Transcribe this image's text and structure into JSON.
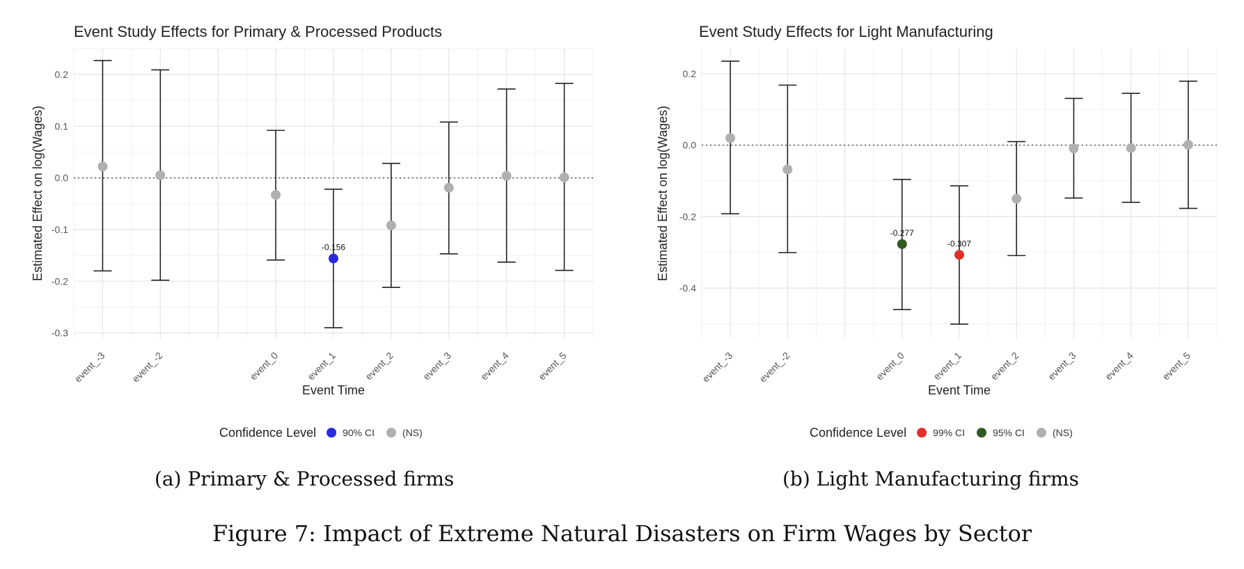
{
  "chart_data": [
    {
      "type": "scatter",
      "title": "Event Study Effects for Primary & Processed Products",
      "xlabel": "Event Time",
      "ylabel": "Estimated Effect on log(Wages)",
      "categories": [
        "event_-3",
        "event_-2",
        "event_0",
        "event_1",
        "event_2",
        "event_3",
        "event_4",
        "event_5"
      ],
      "ylim": [
        -0.31,
        0.25
      ],
      "yticks": [
        0.2,
        0.1,
        0.0,
        -0.1,
        -0.2,
        -0.3
      ],
      "ytick_labels": [
        "0.2",
        "0.1",
        "0.0",
        "-0.1",
        "-0.2",
        "-0.3"
      ],
      "reference_line": 0,
      "grid": true,
      "points": [
        {
          "x": "event_-3",
          "estimate": 0.022,
          "ci_low": -0.18,
          "ci_high": 0.227,
          "group": "(NS)"
        },
        {
          "x": "event_-2",
          "estimate": 0.005,
          "ci_low": -0.198,
          "ci_high": 0.209,
          "group": "(NS)"
        },
        {
          "x": "event_0",
          "estimate": -0.033,
          "ci_low": -0.159,
          "ci_high": 0.092,
          "group": "(NS)"
        },
        {
          "x": "event_1",
          "estimate": -0.156,
          "ci_low": -0.29,
          "ci_high": -0.022,
          "group": "90% CI",
          "label": "-0.156"
        },
        {
          "x": "event_2",
          "estimate": -0.092,
          "ci_low": -0.212,
          "ci_high": 0.028,
          "group": "(NS)"
        },
        {
          "x": "event_3",
          "estimate": -0.019,
          "ci_low": -0.147,
          "ci_high": 0.108,
          "group": "(NS)"
        },
        {
          "x": "event_4",
          "estimate": 0.004,
          "ci_low": -0.163,
          "ci_high": 0.172,
          "group": "(NS)"
        },
        {
          "x": "event_5",
          "estimate": 0.001,
          "ci_low": -0.179,
          "ci_high": 0.183,
          "group": "(NS)"
        }
      ],
      "legend": {
        "title": "Confidence Level",
        "position": "bottom",
        "items": [
          {
            "name": "90% CI",
            "color": "#2a2ae0"
          },
          {
            "name": "(NS)",
            "color": "#b0b0b0"
          }
        ]
      }
    },
    {
      "type": "scatter",
      "title": "Event Study Effects for Light Manufacturing",
      "xlabel": "Event Time",
      "ylabel": "Estimated Effect on log(Wages)",
      "categories": [
        "event_-3",
        "event_-2",
        "event_0",
        "event_1",
        "event_2",
        "event_3",
        "event_4",
        "event_5"
      ],
      "ylim": [
        -0.54,
        0.27
      ],
      "yticks": [
        0.2,
        0.0,
        -0.2,
        -0.4
      ],
      "ytick_labels": [
        "0.2",
        "0.0",
        "-0.2",
        "-0.4"
      ],
      "reference_line": 0,
      "grid": true,
      "points": [
        {
          "x": "event_-3",
          "estimate": 0.02,
          "ci_low": -0.192,
          "ci_high": 0.235,
          "group": "(NS)"
        },
        {
          "x": "event_-2",
          "estimate": -0.068,
          "ci_low": -0.301,
          "ci_high": 0.168,
          "group": "(NS)"
        },
        {
          "x": "event_0",
          "estimate": -0.277,
          "ci_low": -0.46,
          "ci_high": -0.096,
          "group": "95% CI",
          "label": "-0.277"
        },
        {
          "x": "event_1",
          "estimate": -0.307,
          "ci_low": -0.501,
          "ci_high": -0.114,
          "group": "99% CI",
          "label": "-0.307"
        },
        {
          "x": "event_2",
          "estimate": -0.15,
          "ci_low": -0.309,
          "ci_high": 0.01,
          "group": "(NS)"
        },
        {
          "x": "event_3",
          "estimate": -0.009,
          "ci_low": -0.148,
          "ci_high": 0.131,
          "group": "(NS)"
        },
        {
          "x": "event_4",
          "estimate": -0.008,
          "ci_low": -0.16,
          "ci_high": 0.145,
          "group": "(NS)"
        },
        {
          "x": "event_5",
          "estimate": 0.001,
          "ci_low": -0.177,
          "ci_high": 0.179,
          "group": "(NS)"
        }
      ],
      "legend": {
        "title": "Confidence Level",
        "position": "bottom",
        "items": [
          {
            "name": "99% CI",
            "color": "#e0302a"
          },
          {
            "name": "95% CI",
            "color": "#2f5c1e"
          },
          {
            "name": "(NS)",
            "color": "#b0b0b0"
          }
        ]
      }
    }
  ],
  "subcaptions": [
    "(a) Primary & Processed firms",
    "(b) Light Manufacturing firms"
  ],
  "figure_caption": "Figure 7: Impact of Extreme Natural Disasters on Firm Wages by Sector"
}
